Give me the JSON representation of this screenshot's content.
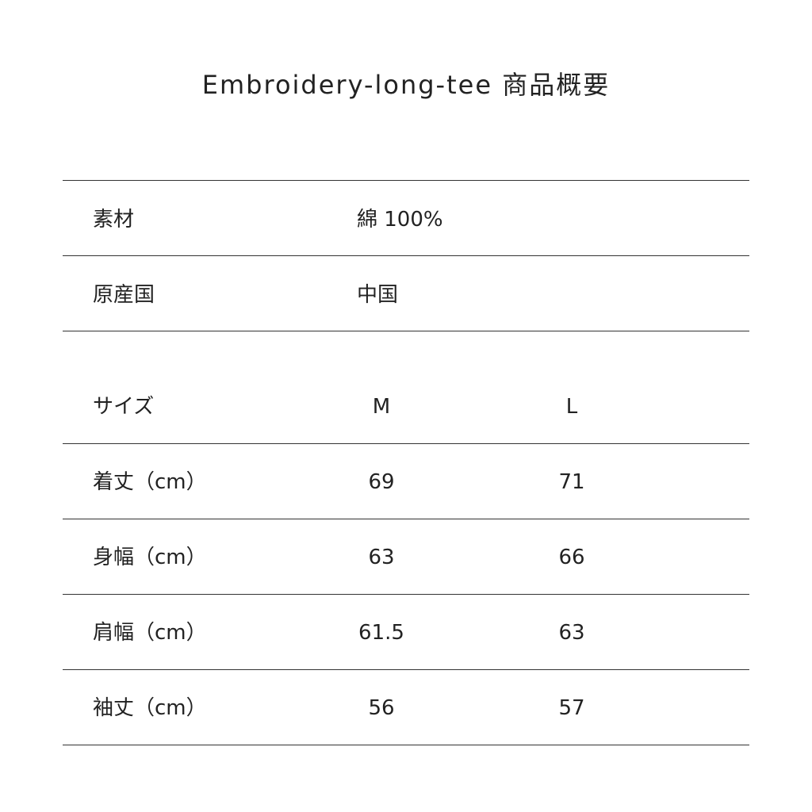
{
  "title": "Embroidery-long-tee 商品概要",
  "info": [
    {
      "label": "素材",
      "value": "綿 100%"
    },
    {
      "label": "原産国",
      "value": "中国"
    }
  ],
  "size_table": {
    "header": {
      "label": "サイズ",
      "m": "M",
      "l": "L"
    },
    "rows": [
      {
        "label": "着丈（cm）",
        "m": "69",
        "l": "71"
      },
      {
        "label": "身幅（cm）",
        "m": "63",
        "l": "66"
      },
      {
        "label": "肩幅（cm）",
        "m": "61.5",
        "l": "63"
      },
      {
        "label": "袖丈（cm）",
        "m": "56",
        "l": "57"
      }
    ]
  }
}
